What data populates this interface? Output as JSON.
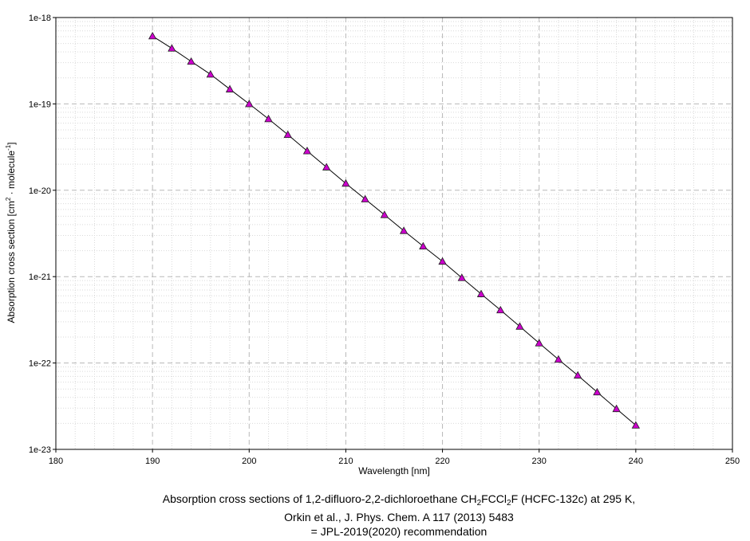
{
  "chart_data": {
    "type": "scatter",
    "x_axis": {
      "label": "Wavelength [nm]",
      "min": 180,
      "max": 250,
      "ticks": [
        "180",
        "190",
        "200",
        "210",
        "220",
        "230",
        "240",
        "250"
      ]
    },
    "y_axis": {
      "label_parts": [
        "Absorption cross section [cm",
        "2",
        " · molecule",
        "-1",
        "]"
      ],
      "scale": "log",
      "min": 1e-23,
      "max": 1e-18,
      "ticks": [
        "1e-23",
        "1e-22",
        "1e-21",
        "1e-20",
        "1e-19",
        "1e-18"
      ]
    },
    "grid": true,
    "marker": "triangle",
    "marker_color": "#cc00cc",
    "line_color": "#000000",
    "series": [
      {
        "x": [
          190,
          192,
          194,
          196,
          198,
          200,
          202,
          204,
          206,
          208,
          210,
          212,
          214,
          216,
          218,
          220,
          222,
          224,
          226,
          228,
          230,
          232,
          234,
          236,
          238,
          240
        ],
        "y": [
          6.1e-19,
          4.4e-19,
          3.1e-19,
          2.2e-19,
          1.48e-19,
          1e-19,
          6.7e-20,
          4.4e-20,
          2.85e-20,
          1.85e-20,
          1.2e-20,
          7.9e-21,
          5.2e-21,
          3.4e-21,
          2.25e-21,
          1.5e-21,
          9.7e-22,
          6.3e-22,
          4.1e-22,
          2.65e-22,
          1.7e-22,
          1.1e-22,
          7.2e-23,
          4.6e-23,
          2.95e-23,
          1.9e-23
        ]
      }
    ]
  },
  "caption": {
    "line1_parts": [
      "Absorption cross sections of 1,2-difluoro-2,2-dichloroethane CH",
      "2",
      "FCCl",
      "2",
      "F (HCFC-132c)  at 295 K,"
    ],
    "line2": "Orkin et al., J. Phys. Chem. A 117 (2013) 5483",
    "line3": "= JPL-2019(2020) recommendation"
  }
}
